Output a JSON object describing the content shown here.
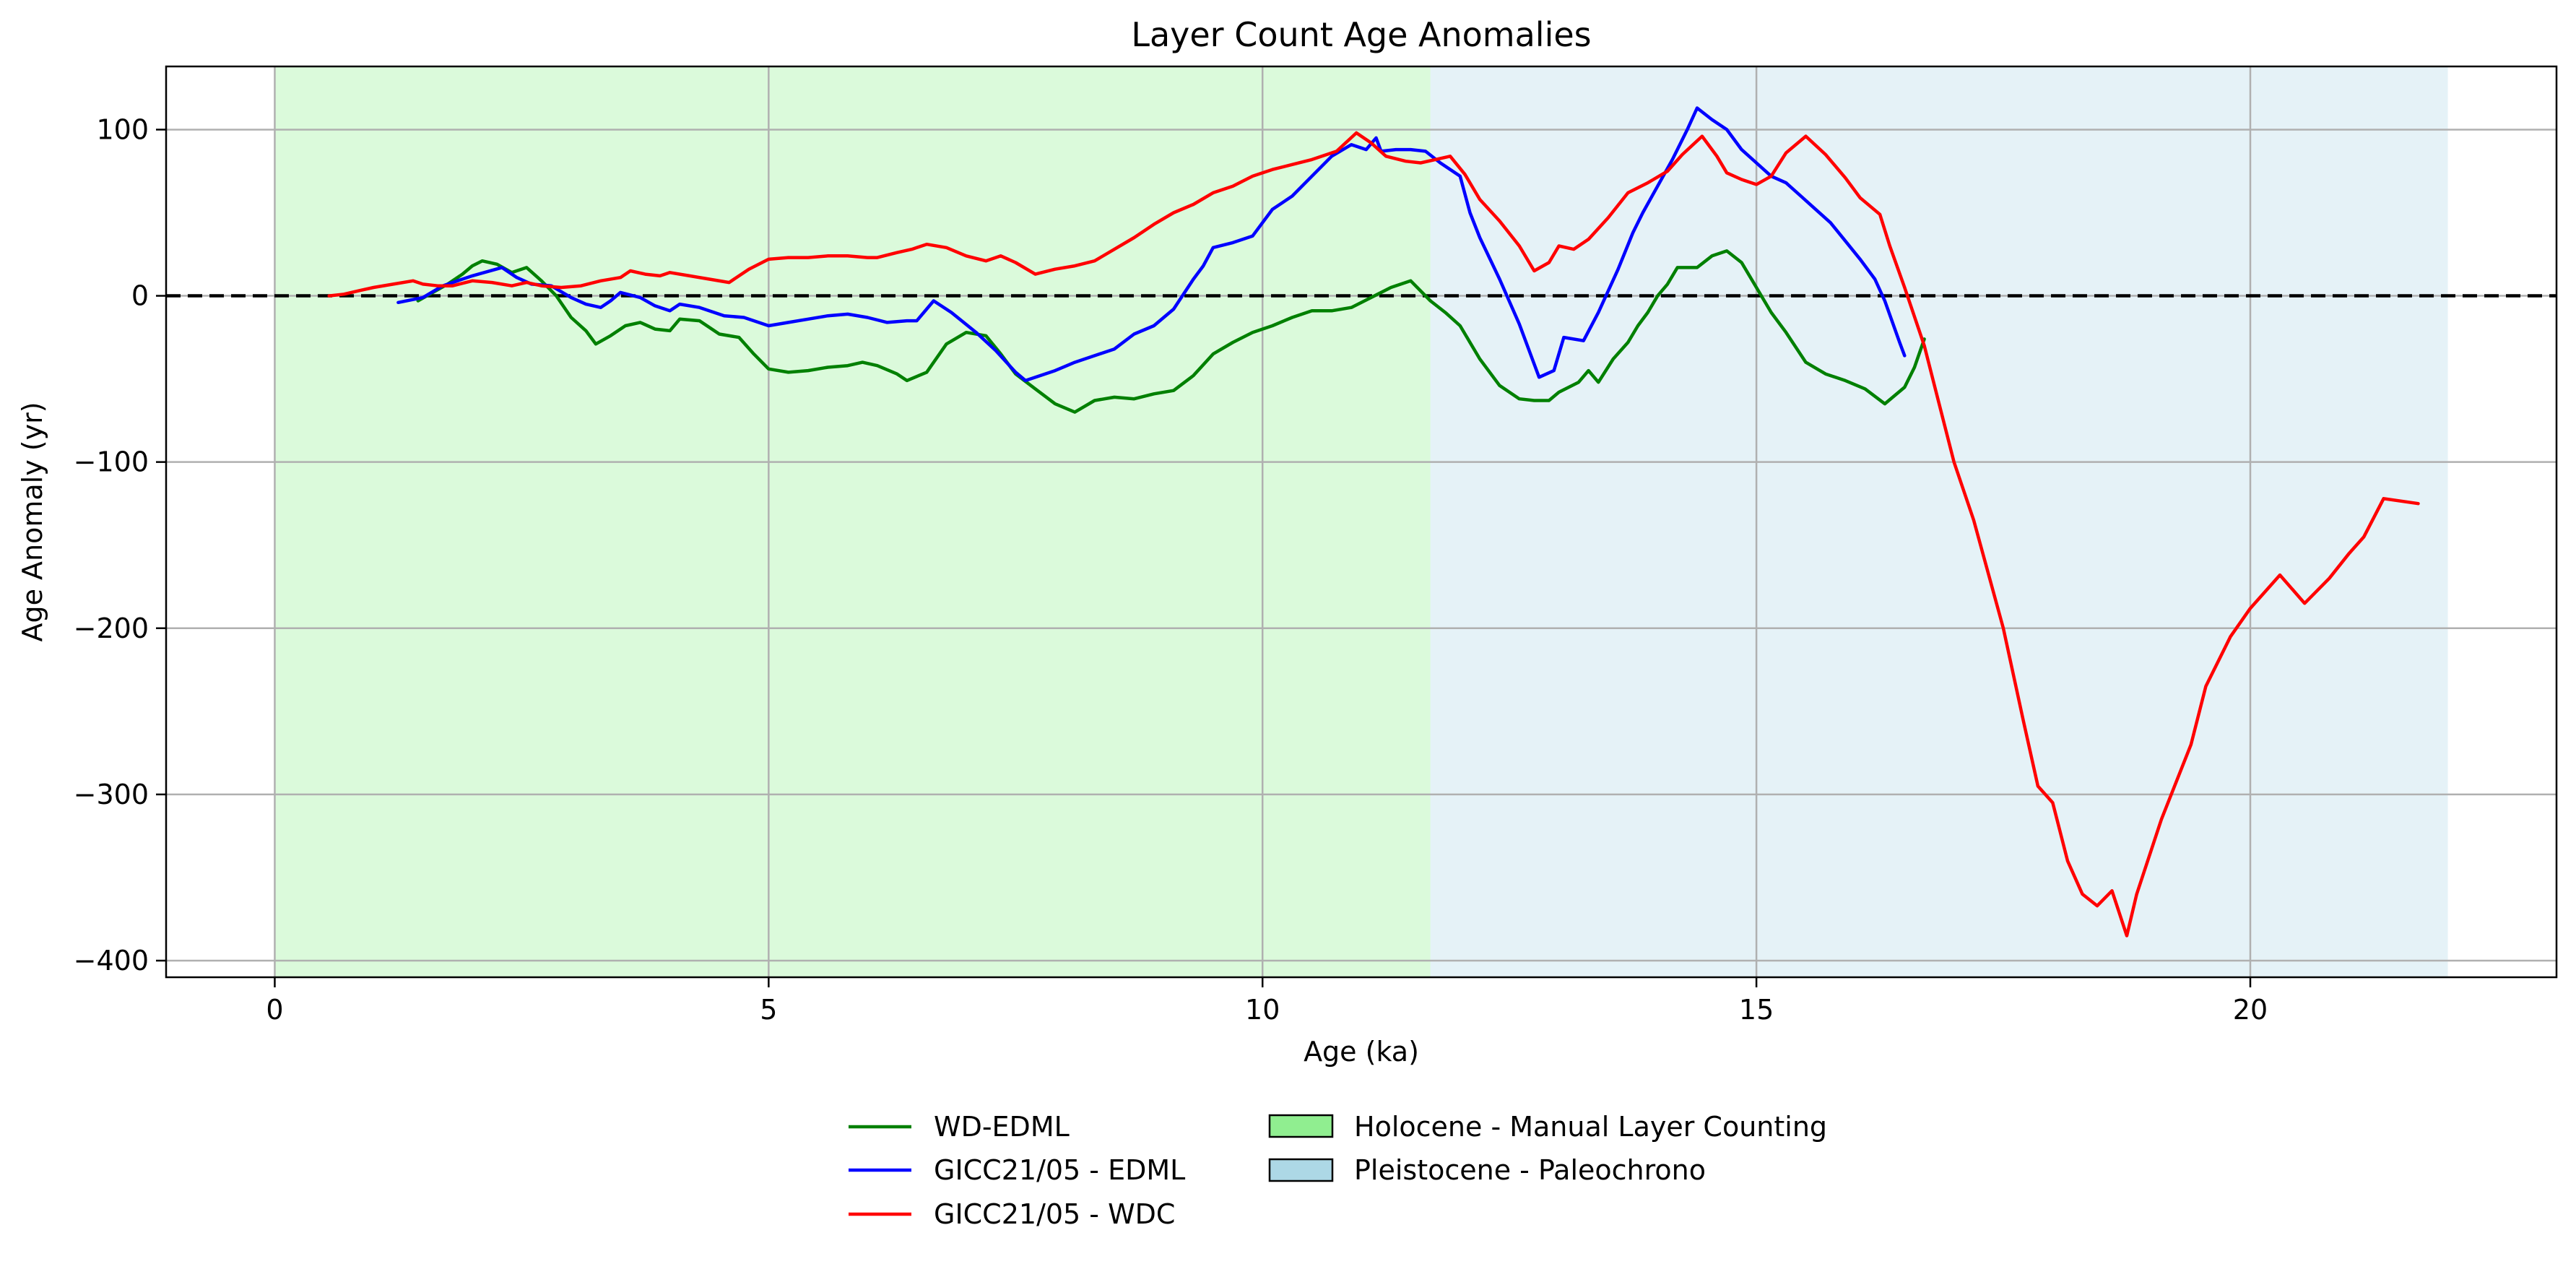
{
  "chart_data": {
    "type": "line",
    "title": "Layer Count Age Anomalies",
    "xlabel": "Age (ka)",
    "ylabel": "Age Anomaly (yr)",
    "xlim": [
      -1.1,
      23.1
    ],
    "ylim": [
      -410,
      138
    ],
    "xticks": [
      0,
      5,
      10,
      15,
      20
    ],
    "yticks": [
      100,
      0,
      -100,
      -200,
      -300,
      -400
    ],
    "xtick_labels": [
      "0",
      "5",
      "10",
      "15",
      "20"
    ],
    "ytick_labels": [
      "100",
      "0",
      "−100",
      "−200",
      "−300",
      "−400"
    ],
    "grid": true,
    "zero_line": {
      "y": 0,
      "style": "dashed",
      "color": "#000000"
    },
    "legend_placement": "bottom-center",
    "regions": [
      {
        "name": "Holocene - Manual Layer Counting",
        "x0": 0,
        "x1": 11.7,
        "color": "#90ee90"
      },
      {
        "name": "Pleistocene - Paleochrono",
        "x0": 11.7,
        "x1": 22.0,
        "color": "#add8e6"
      }
    ],
    "series": [
      {
        "name": "WD-EDML",
        "color": "#008000",
        "points": [
          [
            1.45,
            -3
          ],
          [
            1.6,
            2
          ],
          [
            1.75,
            7
          ],
          [
            1.9,
            13
          ],
          [
            2.0,
            18
          ],
          [
            2.1,
            21
          ],
          [
            2.25,
            19
          ],
          [
            2.4,
            14
          ],
          [
            2.55,
            17
          ],
          [
            2.7,
            9
          ],
          [
            2.85,
            0
          ],
          [
            3.0,
            -13
          ],
          [
            3.15,
            -21
          ],
          [
            3.25,
            -29
          ],
          [
            3.4,
            -24
          ],
          [
            3.55,
            -18
          ],
          [
            3.7,
            -16
          ],
          [
            3.85,
            -20
          ],
          [
            4.0,
            -21
          ],
          [
            4.1,
            -14
          ],
          [
            4.3,
            -15
          ],
          [
            4.5,
            -23
          ],
          [
            4.7,
            -25
          ],
          [
            4.85,
            -35
          ],
          [
            5.0,
            -44
          ],
          [
            5.2,
            -46
          ],
          [
            5.4,
            -45
          ],
          [
            5.6,
            -43
          ],
          [
            5.8,
            -42
          ],
          [
            5.95,
            -40
          ],
          [
            6.1,
            -42
          ],
          [
            6.3,
            -47
          ],
          [
            6.4,
            -51
          ],
          [
            6.6,
            -46
          ],
          [
            6.8,
            -29
          ],
          [
            7.0,
            -22
          ],
          [
            7.2,
            -24
          ],
          [
            7.35,
            -35
          ],
          [
            7.5,
            -47
          ],
          [
            7.7,
            -56
          ],
          [
            7.9,
            -65
          ],
          [
            8.1,
            -70
          ],
          [
            8.3,
            -63
          ],
          [
            8.5,
            -61
          ],
          [
            8.7,
            -62
          ],
          [
            8.9,
            -59
          ],
          [
            9.1,
            -57
          ],
          [
            9.3,
            -48
          ],
          [
            9.5,
            -35
          ],
          [
            9.7,
            -28
          ],
          [
            9.9,
            -22
          ],
          [
            10.1,
            -18
          ],
          [
            10.3,
            -13
          ],
          [
            10.5,
            -9
          ],
          [
            10.7,
            -9
          ],
          [
            10.9,
            -7
          ],
          [
            11.1,
            -1
          ],
          [
            11.3,
            5
          ],
          [
            11.5,
            9
          ],
          [
            11.7,
            -3
          ],
          [
            11.85,
            -10
          ],
          [
            12.0,
            -18
          ],
          [
            12.2,
            -38
          ],
          [
            12.4,
            -54
          ],
          [
            12.6,
            -62
          ],
          [
            12.75,
            -63
          ],
          [
            12.9,
            -63
          ],
          [
            13.0,
            -58
          ],
          [
            13.2,
            -52
          ],
          [
            13.3,
            -45
          ],
          [
            13.4,
            -52
          ],
          [
            13.55,
            -38
          ],
          [
            13.7,
            -28
          ],
          [
            13.8,
            -18
          ],
          [
            13.9,
            -10
          ],
          [
            14.0,
            0
          ],
          [
            14.1,
            7
          ],
          [
            14.2,
            17
          ],
          [
            14.4,
            17
          ],
          [
            14.55,
            24
          ],
          [
            14.7,
            27
          ],
          [
            14.85,
            20
          ],
          [
            15.0,
            5
          ],
          [
            15.15,
            -10
          ],
          [
            15.3,
            -22
          ],
          [
            15.5,
            -40
          ],
          [
            15.7,
            -47
          ],
          [
            15.9,
            -51
          ],
          [
            16.1,
            -56
          ],
          [
            16.3,
            -65
          ],
          [
            16.4,
            -60
          ],
          [
            16.5,
            -55
          ],
          [
            16.6,
            -43
          ],
          [
            16.7,
            -26
          ]
        ]
      },
      {
        "name": "GICC21/05 - EDML",
        "color": "#0000ff",
        "points": [
          [
            1.25,
            -4
          ],
          [
            1.5,
            -1
          ],
          [
            1.7,
            6
          ],
          [
            2.0,
            12
          ],
          [
            2.3,
            17
          ],
          [
            2.45,
            11
          ],
          [
            2.6,
            7
          ],
          [
            2.8,
            6
          ],
          [
            3.0,
            -1
          ],
          [
            3.15,
            -5
          ],
          [
            3.3,
            -7
          ],
          [
            3.4,
            -3
          ],
          [
            3.5,
            2
          ],
          [
            3.7,
            -1
          ],
          [
            3.85,
            -6
          ],
          [
            4.0,
            -9
          ],
          [
            4.1,
            -5
          ],
          [
            4.3,
            -7
          ],
          [
            4.55,
            -12
          ],
          [
            4.75,
            -13
          ],
          [
            5.0,
            -18
          ],
          [
            5.2,
            -16
          ],
          [
            5.4,
            -14
          ],
          [
            5.6,
            -12
          ],
          [
            5.8,
            -11
          ],
          [
            6.0,
            -13
          ],
          [
            6.2,
            -16
          ],
          [
            6.4,
            -15
          ],
          [
            6.5,
            -15
          ],
          [
            6.67,
            -3
          ],
          [
            6.85,
            -10
          ],
          [
            7.1,
            -22
          ],
          [
            7.3,
            -33
          ],
          [
            7.5,
            -46
          ],
          [
            7.6,
            -51
          ],
          [
            7.9,
            -45
          ],
          [
            8.1,
            -40
          ],
          [
            8.3,
            -36
          ],
          [
            8.5,
            -32
          ],
          [
            8.7,
            -23
          ],
          [
            8.9,
            -18
          ],
          [
            9.1,
            -8
          ],
          [
            9.3,
            10
          ],
          [
            9.4,
            18
          ],
          [
            9.5,
            29
          ],
          [
            9.7,
            32
          ],
          [
            9.9,
            36
          ],
          [
            10.1,
            52
          ],
          [
            10.3,
            60
          ],
          [
            10.5,
            72
          ],
          [
            10.7,
            84
          ],
          [
            10.9,
            91
          ],
          [
            11.05,
            88
          ],
          [
            11.15,
            95
          ],
          [
            11.2,
            87
          ],
          [
            11.35,
            88
          ],
          [
            11.5,
            88
          ],
          [
            11.65,
            87
          ],
          [
            11.8,
            80
          ],
          [
            12.0,
            72
          ],
          [
            12.1,
            50
          ],
          [
            12.2,
            35
          ],
          [
            12.4,
            10
          ],
          [
            12.6,
            -17
          ],
          [
            12.8,
            -49
          ],
          [
            12.95,
            -45
          ],
          [
            13.05,
            -25
          ],
          [
            13.25,
            -27
          ],
          [
            13.4,
            -10
          ],
          [
            13.6,
            16
          ],
          [
            13.75,
            38
          ],
          [
            13.85,
            50
          ],
          [
            14.0,
            66
          ],
          [
            14.15,
            82
          ],
          [
            14.3,
            100
          ],
          [
            14.4,
            113
          ],
          [
            14.55,
            106
          ],
          [
            14.7,
            100
          ],
          [
            14.85,
            88
          ],
          [
            15.0,
            80
          ],
          [
            15.15,
            72
          ],
          [
            15.3,
            68
          ],
          [
            15.45,
            60
          ],
          [
            15.6,
            52
          ],
          [
            15.75,
            44
          ],
          [
            15.9,
            33
          ],
          [
            16.05,
            22
          ],
          [
            16.2,
            10
          ],
          [
            16.3,
            -3
          ],
          [
            16.45,
            -28
          ],
          [
            16.5,
            -36
          ]
        ]
      },
      {
        "name": "GICC21/05 - WDC",
        "color": "#ff0000",
        "points": [
          [
            0.55,
            0
          ],
          [
            0.7,
            1
          ],
          [
            0.85,
            3
          ],
          [
            1.0,
            5
          ],
          [
            1.2,
            7
          ],
          [
            1.4,
            9
          ],
          [
            1.5,
            7
          ],
          [
            1.65,
            6
          ],
          [
            1.8,
            6
          ],
          [
            2.0,
            9
          ],
          [
            2.2,
            8
          ],
          [
            2.4,
            6
          ],
          [
            2.55,
            8
          ],
          [
            2.7,
            6
          ],
          [
            2.9,
            5
          ],
          [
            3.1,
            6
          ],
          [
            3.3,
            9
          ],
          [
            3.5,
            11
          ],
          [
            3.6,
            15
          ],
          [
            3.75,
            13
          ],
          [
            3.9,
            12
          ],
          [
            4.0,
            14
          ],
          [
            4.2,
            12
          ],
          [
            4.4,
            10
          ],
          [
            4.6,
            8
          ],
          [
            4.8,
            16
          ],
          [
            5.0,
            22
          ],
          [
            5.2,
            23
          ],
          [
            5.4,
            23
          ],
          [
            5.6,
            24
          ],
          [
            5.8,
            24
          ],
          [
            6.0,
            23
          ],
          [
            6.1,
            23
          ],
          [
            6.3,
            26
          ],
          [
            6.45,
            28
          ],
          [
            6.6,
            31
          ],
          [
            6.8,
            29
          ],
          [
            7.0,
            24
          ],
          [
            7.2,
            21
          ],
          [
            7.35,
            24
          ],
          [
            7.5,
            20
          ],
          [
            7.7,
            13
          ],
          [
            7.9,
            16
          ],
          [
            8.1,
            18
          ],
          [
            8.3,
            21
          ],
          [
            8.5,
            28
          ],
          [
            8.7,
            35
          ],
          [
            8.9,
            43
          ],
          [
            9.1,
            50
          ],
          [
            9.3,
            55
          ],
          [
            9.5,
            62
          ],
          [
            9.7,
            66
          ],
          [
            9.9,
            72
          ],
          [
            10.1,
            76
          ],
          [
            10.3,
            79
          ],
          [
            10.5,
            82
          ],
          [
            10.75,
            87
          ],
          [
            10.95,
            98
          ],
          [
            11.1,
            92
          ],
          [
            11.25,
            84
          ],
          [
            11.45,
            81
          ],
          [
            11.6,
            80
          ],
          [
            11.75,
            82
          ],
          [
            11.9,
            84
          ],
          [
            12.05,
            73
          ],
          [
            12.2,
            58
          ],
          [
            12.4,
            45
          ],
          [
            12.6,
            30
          ],
          [
            12.75,
            15
          ],
          [
            12.9,
            20
          ],
          [
            13.0,
            30
          ],
          [
            13.15,
            28
          ],
          [
            13.3,
            34
          ],
          [
            13.5,
            47
          ],
          [
            13.7,
            62
          ],
          [
            13.9,
            68
          ],
          [
            14.1,
            75
          ],
          [
            14.25,
            85
          ],
          [
            14.45,
            96
          ],
          [
            14.6,
            84
          ],
          [
            14.7,
            74
          ],
          [
            14.85,
            70
          ],
          [
            15.0,
            67
          ],
          [
            15.15,
            72
          ],
          [
            15.3,
            86
          ],
          [
            15.5,
            96
          ],
          [
            15.7,
            85
          ],
          [
            15.9,
            71
          ],
          [
            16.05,
            59
          ],
          [
            16.25,
            49
          ],
          [
            16.35,
            30
          ],
          [
            16.5,
            5
          ],
          [
            16.7,
            -30
          ],
          [
            16.85,
            -65
          ],
          [
            17.0,
            -100
          ],
          [
            17.2,
            -135
          ],
          [
            17.5,
            -200
          ],
          [
            17.7,
            -255
          ],
          [
            17.85,
            -295
          ],
          [
            18.0,
            -305
          ],
          [
            18.15,
            -340
          ],
          [
            18.3,
            -360
          ],
          [
            18.45,
            -367
          ],
          [
            18.6,
            -358
          ],
          [
            18.75,
            -385
          ],
          [
            18.85,
            -360
          ],
          [
            19.1,
            -315
          ],
          [
            19.4,
            -270
          ],
          [
            19.55,
            -235
          ],
          [
            19.8,
            -205
          ],
          [
            20.0,
            -188
          ],
          [
            20.3,
            -168
          ],
          [
            20.55,
            -185
          ],
          [
            20.8,
            -170
          ],
          [
            21.0,
            -155
          ],
          [
            21.15,
            -145
          ],
          [
            21.35,
            -122
          ],
          [
            21.7,
            -125
          ]
        ]
      }
    ]
  }
}
